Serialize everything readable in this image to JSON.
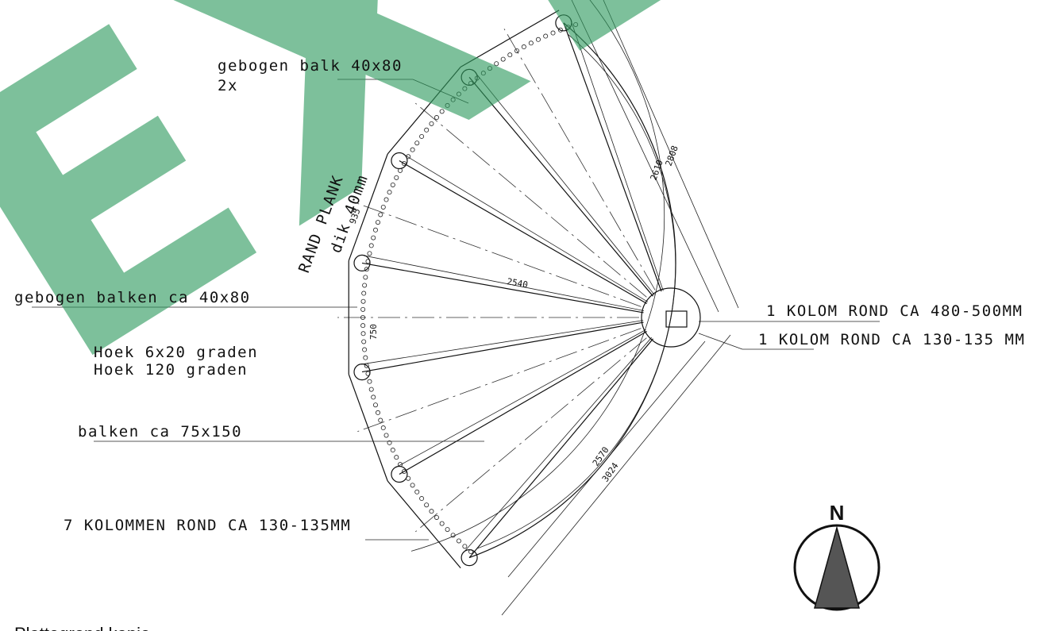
{
  "watermark": "EXL",
  "labels": {
    "beam_top": "gebogen balk 40x80",
    "beam_top_count": "2x",
    "edge_plank": "RAND PLANK",
    "edge_plank_thickness": "dik 40mm",
    "beams_curved": "gebogen balken ca 40x80",
    "angle_step": "Hoek 6x20 graden",
    "angle_total": "Hoek 120 graden",
    "beams": "balken ca 75x150",
    "columns": "7 KOLOMMEN ROND CA 130-135MM",
    "column_large": "1 KOLOM ROND CA 480-500MM",
    "column_small": "1 KOLOM ROND CA 130-135 MM",
    "caption": "Plattegrond kapje"
  },
  "dimensions": [
    "2808",
    "2610",
    "935",
    "2540",
    "750",
    "2570",
    "3024"
  ],
  "compass": "N"
}
